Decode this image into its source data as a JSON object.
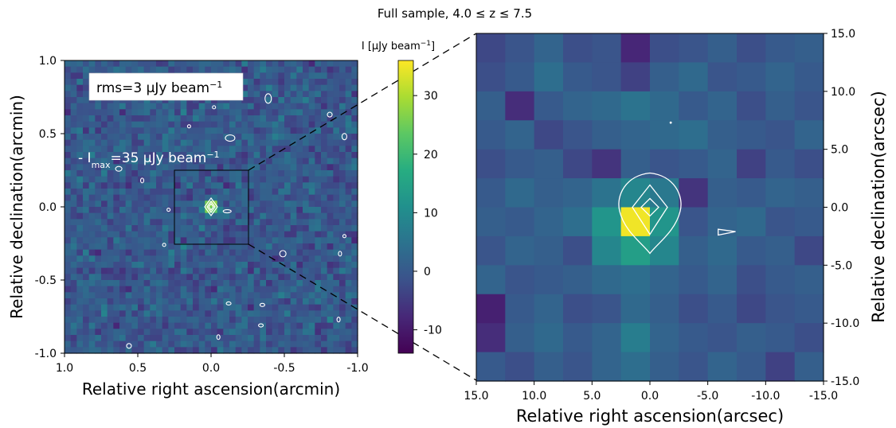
{
  "figure": {
    "title": "Full sample, 4.0 ≤ z ≤ 7.5"
  },
  "colors": {
    "cmap": [
      "#440154",
      "#472878",
      "#3b528b",
      "#2c728e",
      "#21908d",
      "#27ad81",
      "#5cc863",
      "#aadc32",
      "#fde725"
    ],
    "contour": "#ffffff",
    "frame": "#000000"
  },
  "chart_data": [
    {
      "type": "heatmap",
      "panel": "left",
      "xlabel": "Relative right ascension(arcmin)",
      "ylabel": "Relative declination(arcmin)",
      "xlim": [
        1.0,
        -1.0
      ],
      "ylim": [
        -1.0,
        1.0
      ],
      "xticks": [
        "1.0",
        "0.5",
        "0.0",
        "-0.5",
        "-1.0"
      ],
      "yticks": [
        "-1.0",
        "-0.5",
        "0.0",
        "0.5",
        "1.0"
      ],
      "grid": false,
      "grid_size": [
        48,
        48
      ],
      "annotations": [
        "rms=3 μJy beam⁻¹",
        "I_max=35 μJy beam⁻¹"
      ],
      "zoom_box_arcmin": {
        "x": [
          -0.25,
          0.25
        ],
        "y": [
          -0.25,
          0.25
        ]
      },
      "peak": {
        "x": 0.0,
        "y": 0.0,
        "value": 35
      }
    },
    {
      "type": "colorbar",
      "label": "I [μJy beam⁻¹]",
      "range": [
        -14,
        36
      ],
      "ticks": [
        "-10",
        "0",
        "10",
        "20",
        "30"
      ]
    },
    {
      "type": "heatmap",
      "panel": "right",
      "xlabel": "Relative right ascension(arcsec)",
      "ylabel": "Relative declination(arcsec)",
      "xlim": [
        15.0,
        -15.0
      ],
      "ylim": [
        -15.0,
        15.0
      ],
      "xticks": [
        "15.0",
        "10.0",
        "5.0",
        "0.0",
        "-5.0",
        "-10.0",
        "-15.0"
      ],
      "yticks": [
        "-15.0",
        "-10.0",
        "-5.0",
        "0.0",
        "5.0",
        "10.0",
        "15.0"
      ],
      "grid": false,
      "grid_size": [
        12,
        12
      ],
      "values": [
        [
          -3,
          -1,
          2,
          -2,
          -1,
          -8,
          -2,
          -1,
          1,
          -2,
          0,
          1
        ],
        [
          -2,
          0,
          4,
          0,
          -1,
          -4,
          1,
          3,
          -1,
          0,
          2,
          0
        ],
        [
          1,
          -7,
          0,
          2,
          3,
          5,
          3,
          0,
          2,
          -2,
          1,
          -1
        ],
        [
          0,
          2,
          -3,
          -1,
          1,
          2,
          3,
          4,
          1,
          0,
          -1,
          2
        ],
        [
          -2,
          0,
          1,
          -3,
          -6,
          1,
          -1,
          0,
          2,
          -4,
          0,
          -2
        ],
        [
          0,
          3,
          1,
          2,
          5,
          9,
          6,
          -6,
          1,
          0,
          2,
          1
        ],
        [
          1,
          0,
          2,
          4,
          12,
          35,
          12,
          -1,
          2,
          3,
          -1,
          0
        ],
        [
          -1,
          2,
          1,
          -2,
          9,
          14,
          9,
          1,
          3,
          0,
          1,
          -3
        ],
        [
          2,
          -1,
          0,
          1,
          3,
          4,
          2,
          0,
          2,
          -2,
          0,
          1
        ],
        [
          -9,
          0,
          2,
          -2,
          -1,
          3,
          1,
          -2,
          0,
          -3,
          -1,
          0
        ],
        [
          -7,
          1,
          3,
          0,
          2,
          7,
          2,
          0,
          -1,
          1,
          0,
          -2
        ],
        [
          0,
          -2,
          1,
          -1,
          2,
          4,
          1,
          -1,
          2,
          0,
          -4,
          1
        ]
      ],
      "contour_levels_sigma": [
        3,
        6,
        9
      ],
      "peak": {
        "x": 0.0,
        "y": 0.0,
        "value": 35
      }
    }
  ]
}
